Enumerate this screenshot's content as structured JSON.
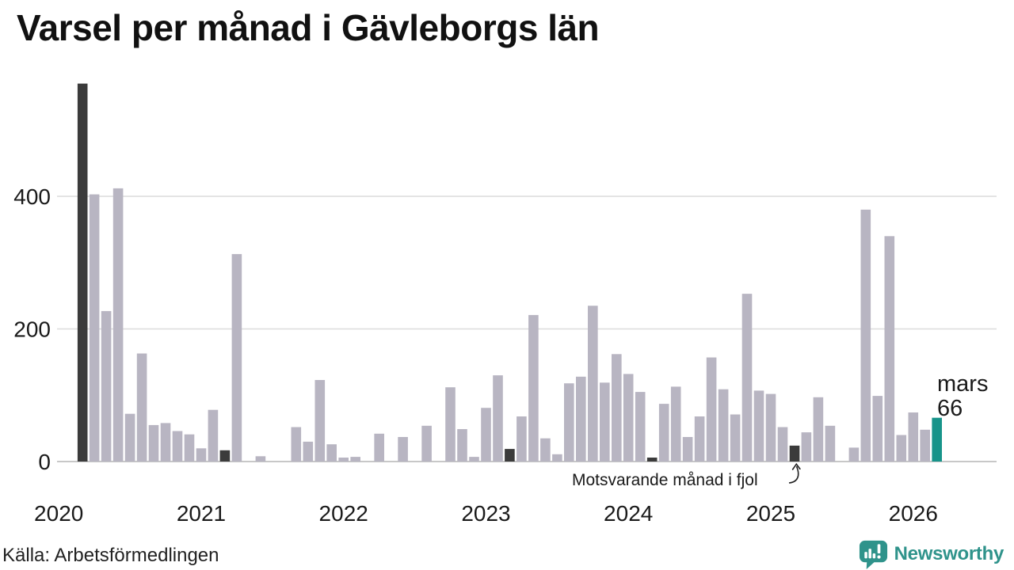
{
  "page": {
    "title": "Varsel per månad i Gävleborgs län"
  },
  "footer": {
    "source": "Källa: Arbetsförmedlingen",
    "brand": "Newsworthy"
  },
  "colors": {
    "bar": "#b8b5c2",
    "bar_dark": "#3b3b3b",
    "bar_accent": "#17948a",
    "grid": "#dcdcdc",
    "axis": "#c8c8c8",
    "text": "#1a1a1a",
    "brand_teal": "#2f938b"
  },
  "chart_data": {
    "type": "bar",
    "title": "Varsel per månad i Gävleborgs län",
    "xlabel": "",
    "ylabel": "",
    "grid": "horizontal",
    "legend_position": "none",
    "yticks": [
      0,
      200,
      400
    ],
    "ylim": [
      0,
      580
    ],
    "year_ticks": [
      "2020",
      "2021",
      "2022",
      "2023",
      "2024",
      "2025",
      "2026"
    ],
    "months": [
      "2020-01",
      "2020-02",
      "2020-03",
      "2020-04",
      "2020-05",
      "2020-06",
      "2020-07",
      "2020-08",
      "2020-09",
      "2020-10",
      "2020-11",
      "2020-12",
      "2021-01",
      "2021-02",
      "2021-03",
      "2021-04",
      "2021-05",
      "2021-06",
      "2021-07",
      "2021-08",
      "2021-09",
      "2021-10",
      "2021-11",
      "2021-12",
      "2022-01",
      "2022-02",
      "2022-03",
      "2022-04",
      "2022-05",
      "2022-06",
      "2022-07",
      "2022-08",
      "2022-09",
      "2022-10",
      "2022-11",
      "2022-12",
      "2023-01",
      "2023-02",
      "2023-03",
      "2023-04",
      "2023-05",
      "2023-06",
      "2023-07",
      "2023-08",
      "2023-09",
      "2023-10",
      "2023-11",
      "2023-12",
      "2024-01",
      "2024-02",
      "2024-03",
      "2024-04",
      "2024-05",
      "2024-06",
      "2024-07",
      "2024-08",
      "2024-09",
      "2024-10",
      "2024-11",
      "2024-12",
      "2025-01",
      "2025-02",
      "2025-03",
      "2025-04",
      "2025-05",
      "2025-06",
      "2025-07",
      "2025-08",
      "2025-09",
      "2025-10",
      "2025-11",
      "2025-12",
      "2026-01",
      "2026-02",
      "2026-03"
    ],
    "values": [
      0,
      0,
      570,
      403,
      227,
      412,
      72,
      163,
      55,
      58,
      46,
      41,
      20,
      78,
      17,
      313,
      0,
      8,
      0,
      0,
      52,
      30,
      123,
      26,
      6,
      7,
      0,
      42,
      0,
      37,
      0,
      54,
      0,
      112,
      49,
      7,
      81,
      130,
      19,
      68,
      221,
      35,
      11,
      118,
      128,
      235,
      119,
      162,
      132,
      105,
      6,
      87,
      113,
      37,
      68,
      157,
      109,
      71,
      253,
      107,
      102,
      52,
      24,
      44,
      97,
      54,
      0,
      21,
      380,
      99,
      340,
      40,
      74,
      48,
      66
    ],
    "dark_months": [
      "2020-03",
      "2021-03",
      "2022-03",
      "2023-03",
      "2024-03",
      "2025-03"
    ],
    "accent_months": [
      "2026-03"
    ],
    "annotation": {
      "text": "Motsvarande månad i fjol",
      "points_to": "2025-03"
    },
    "highlight_label": {
      "line1": "mars",
      "line2": "66"
    }
  }
}
